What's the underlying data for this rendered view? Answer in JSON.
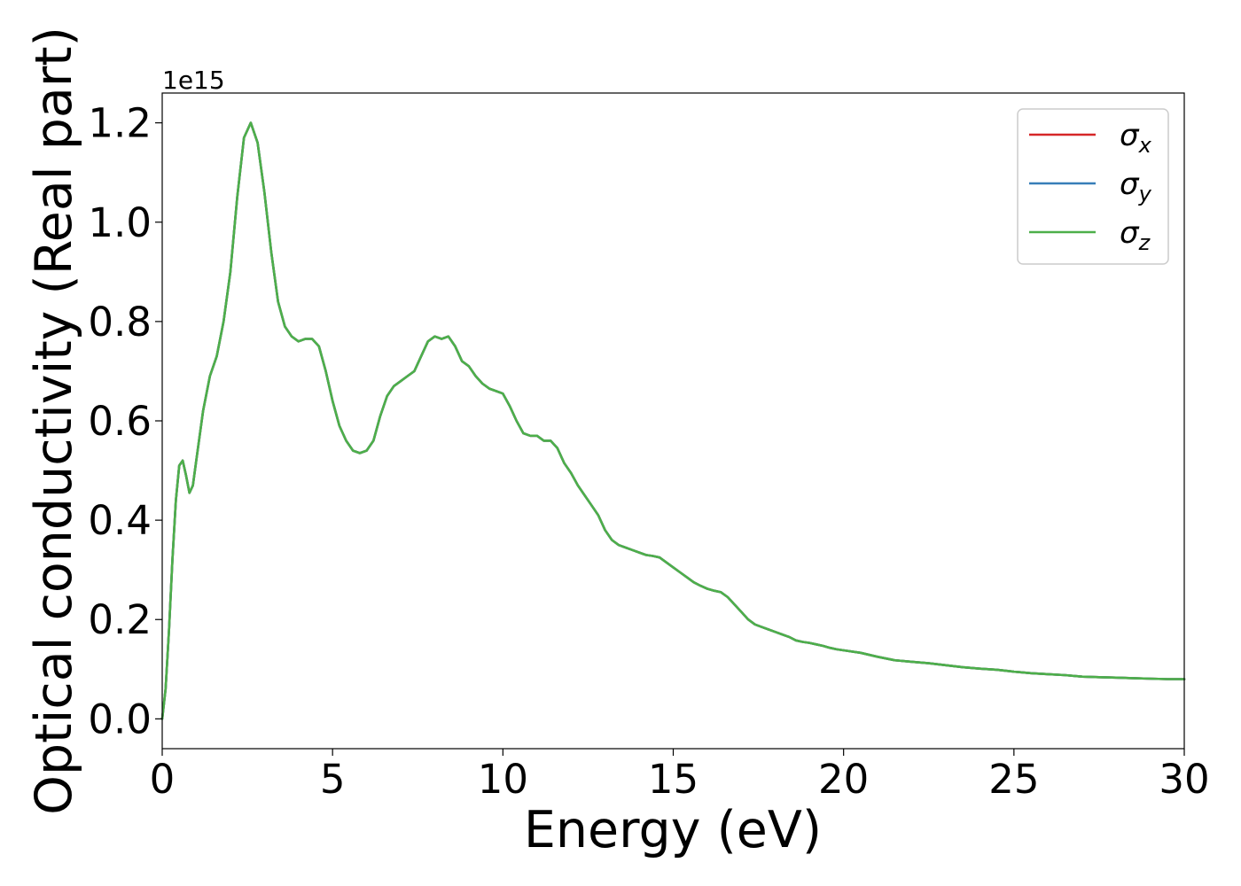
{
  "chart_data": {
    "type": "line",
    "xlabel": "Energy (eV)",
    "ylabel": "Optical conductivity (Real part)",
    "y_offset_label": "1e15",
    "xlim": [
      0,
      30
    ],
    "ylim": [
      -0.06,
      1.26
    ],
    "x_ticks": [
      0,
      5,
      10,
      15,
      20,
      25,
      30
    ],
    "y_ticks": [
      0.0,
      0.2,
      0.4,
      0.6,
      0.8,
      1.0,
      1.2
    ],
    "grid": false,
    "legend_position": "top-right",
    "series": [
      {
        "name": "σx",
        "symbol": "σ",
        "subscript": "x",
        "color": "#d62728",
        "x": [
          0,
          0.1,
          0.2,
          0.3,
          0.4,
          0.5,
          0.6,
          0.7,
          0.8,
          0.9,
          1.0,
          1.2,
          1.4,
          1.6,
          1.8,
          2.0,
          2.2,
          2.4,
          2.6,
          2.8,
          3.0,
          3.2,
          3.4,
          3.6,
          3.8,
          4.0,
          4.2,
          4.4,
          4.6,
          4.8,
          5.0,
          5.2,
          5.4,
          5.6,
          5.8,
          6.0,
          6.2,
          6.4,
          6.6,
          6.8,
          7.0,
          7.2,
          7.4,
          7.6,
          7.8,
          8.0,
          8.2,
          8.4,
          8.6,
          8.8,
          9.0,
          9.2,
          9.4,
          9.6,
          9.8,
          10.0,
          10.2,
          10.4,
          10.6,
          10.8,
          11.0,
          11.2,
          11.4,
          11.6,
          11.8,
          12.0,
          12.2,
          12.4,
          12.6,
          12.8,
          13.0,
          13.2,
          13.4,
          13.6,
          13.8,
          14.0,
          14.2,
          14.4,
          14.6,
          14.8,
          15.0,
          15.2,
          15.4,
          15.6,
          15.8,
          16.0,
          16.2,
          16.4,
          16.6,
          16.8,
          17.0,
          17.2,
          17.4,
          17.6,
          17.8,
          18.0,
          18.2,
          18.4,
          18.6,
          18.8,
          19.0,
          19.2,
          19.4,
          19.6,
          19.8,
          20.0,
          20.5,
          21.0,
          21.5,
          22.0,
          22.5,
          23.0,
          23.5,
          24.0,
          24.5,
          25.0,
          25.5,
          26.0,
          26.5,
          27.0,
          27.5,
          28.0,
          28.5,
          29.0,
          29.5,
          30.0
        ],
        "y": [
          0.0,
          0.06,
          0.18,
          0.32,
          0.44,
          0.51,
          0.52,
          0.49,
          0.455,
          0.47,
          0.52,
          0.62,
          0.69,
          0.73,
          0.8,
          0.9,
          1.05,
          1.17,
          1.2,
          1.16,
          1.06,
          0.94,
          0.84,
          0.79,
          0.77,
          0.76,
          0.765,
          0.765,
          0.75,
          0.7,
          0.64,
          0.59,
          0.56,
          0.54,
          0.535,
          0.54,
          0.56,
          0.61,
          0.65,
          0.67,
          0.68,
          0.69,
          0.7,
          0.73,
          0.76,
          0.77,
          0.765,
          0.77,
          0.75,
          0.72,
          0.71,
          0.69,
          0.675,
          0.665,
          0.66,
          0.655,
          0.63,
          0.6,
          0.575,
          0.57,
          0.57,
          0.56,
          0.56,
          0.545,
          0.515,
          0.495,
          0.47,
          0.45,
          0.43,
          0.41,
          0.38,
          0.36,
          0.35,
          0.345,
          0.34,
          0.335,
          0.33,
          0.328,
          0.325,
          0.315,
          0.305,
          0.295,
          0.285,
          0.275,
          0.268,
          0.262,
          0.258,
          0.255,
          0.245,
          0.23,
          0.215,
          0.2,
          0.19,
          0.185,
          0.18,
          0.175,
          0.17,
          0.165,
          0.158,
          0.155,
          0.153,
          0.15,
          0.147,
          0.143,
          0.14,
          0.138,
          0.133,
          0.125,
          0.118,
          0.115,
          0.112,
          0.108,
          0.104,
          0.101,
          0.099,
          0.095,
          0.092,
          0.09,
          0.088,
          0.085,
          0.084,
          0.083,
          0.082,
          0.081,
          0.08,
          0.08
        ]
      },
      {
        "name": "σy",
        "symbol": "σ",
        "subscript": "y",
        "color": "#377eb8",
        "same_values_as": "σx"
      },
      {
        "name": "σz",
        "symbol": "σ",
        "subscript": "z",
        "color": "#4daf4a",
        "same_values_as": "σx"
      }
    ]
  }
}
